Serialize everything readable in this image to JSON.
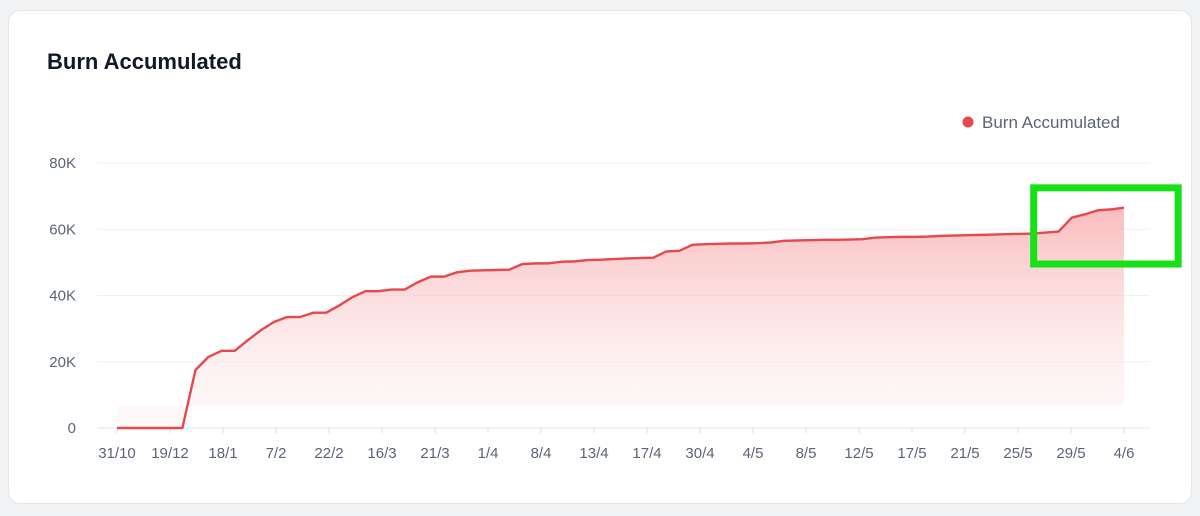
{
  "card": {
    "title": "Burn Accumulated"
  },
  "chart_data": {
    "type": "area",
    "title": "Burn Accumulated",
    "xlabel": "",
    "ylabel": "",
    "ylim": [
      0,
      80000
    ],
    "yticks": [
      0,
      20000,
      40000,
      60000,
      80000
    ],
    "ytick_labels": [
      "0",
      "20K",
      "40K",
      "60K",
      "80K"
    ],
    "xtick_labels": [
      "31/10",
      "19/12",
      "18/1",
      "7/2",
      "22/2",
      "16/3",
      "21/3",
      "1/4",
      "8/4",
      "13/4",
      "17/4",
      "30/4",
      "4/5",
      "8/5",
      "12/5",
      "17/5",
      "21/5",
      "25/5",
      "29/5",
      "4/6"
    ],
    "grid": true,
    "legend": {
      "position": "top-right"
    },
    "series": [
      {
        "name": "Burn Accumulated",
        "color": "#e5484d",
        "values": [
          0,
          0,
          0,
          0,
          0,
          0,
          17500,
          21500,
          23300,
          23300,
          26500,
          29500,
          32000,
          33500,
          33500,
          34800,
          34800,
          37000,
          39500,
          41300,
          41300,
          41800,
          41800,
          44000,
          45700,
          45700,
          47000,
          47500,
          47600,
          47700,
          47800,
          49500,
          49700,
          49700,
          50200,
          50300,
          50700,
          50800,
          51000,
          51200,
          51300,
          51400,
          53300,
          53500,
          55300,
          55500,
          55600,
          55700,
          55700,
          55800,
          56000,
          56500,
          56600,
          56700,
          56800,
          56800,
          56900,
          57000,
          57500,
          57600,
          57700,
          57700,
          57800,
          58000,
          58100,
          58200,
          58300,
          58400,
          58500,
          58600,
          58700,
          59000,
          59300,
          63500,
          64500,
          65700,
          66000,
          66500
        ]
      }
    ]
  },
  "annotation": {
    "shape": "rectangle",
    "color": "#16e016",
    "x_range": [
      73,
      79
    ],
    "y_range": [
      49500,
      72500
    ]
  }
}
